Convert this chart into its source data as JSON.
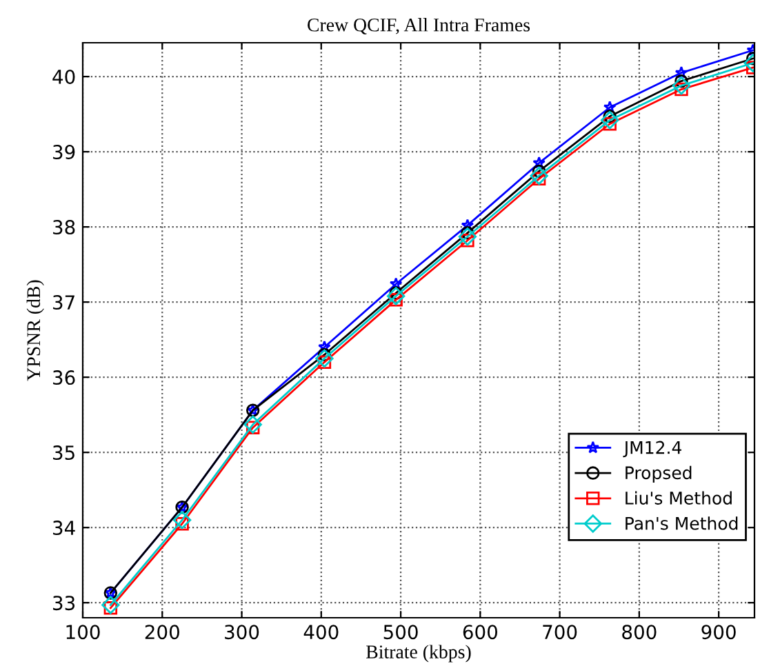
{
  "chart_data": {
    "type": "line",
    "title": "Crew QCIF, All Intra Frames",
    "xlabel": "Bitrate (kbps)",
    "ylabel": "YPSNR (dB)",
    "x": [
      135,
      225,
      314,
      404,
      494,
      584,
      674,
      763,
      853,
      943
    ],
    "series": [
      {
        "name": "JM12.4",
        "color": "#0000ff",
        "marker": "star",
        "values": [
          33.13,
          34.27,
          35.56,
          36.4,
          37.24,
          38.02,
          38.85,
          39.59,
          40.05,
          40.35
        ]
      },
      {
        "name": "Propsed",
        "color": "#000000",
        "marker": "circle",
        "values": [
          33.13,
          34.27,
          35.56,
          36.3,
          37.12,
          37.92,
          38.74,
          39.47,
          39.94,
          40.24
        ]
      },
      {
        "name": "Liu's Method",
        "color": "#ff0000",
        "marker": "square",
        "values": [
          32.93,
          34.05,
          35.33,
          36.2,
          37.03,
          37.82,
          38.64,
          39.37,
          39.83,
          40.12
        ]
      },
      {
        "name": "Pan's Method",
        "color": "#00cccc",
        "marker": "diamond",
        "values": [
          32.97,
          34.1,
          35.37,
          36.25,
          37.08,
          37.87,
          38.68,
          39.42,
          39.88,
          40.18
        ]
      }
    ],
    "xlim": [
      100,
      945
    ],
    "xticks": [
      100,
      200,
      300,
      400,
      500,
      600,
      700,
      800,
      900
    ],
    "ylim": [
      32.8,
      40.45
    ],
    "yticks": [
      33,
      34,
      35,
      36,
      37,
      38,
      39,
      40
    ],
    "grid": true,
    "legend": "bottom right",
    "line_style": "solid"
  }
}
